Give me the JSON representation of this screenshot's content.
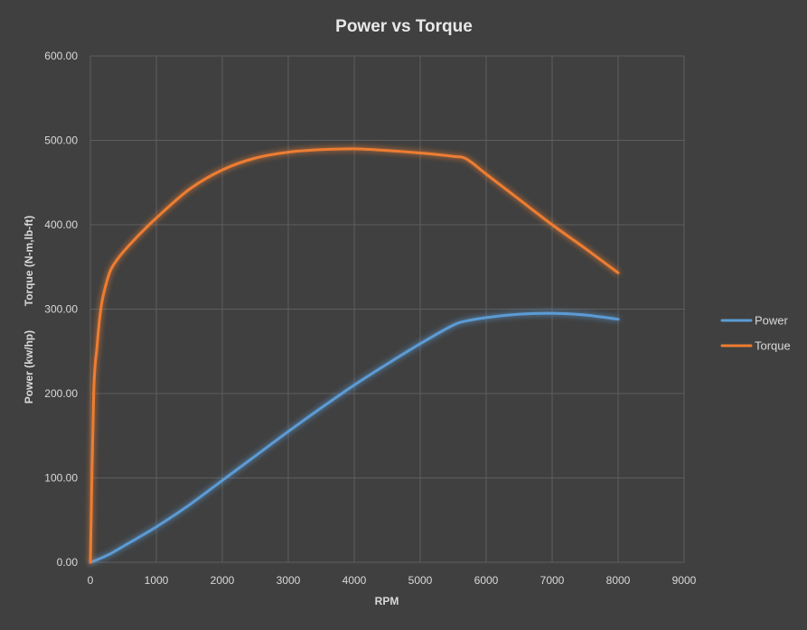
{
  "chart_data": {
    "type": "line",
    "title": "Power vs Torque",
    "xlabel": "RPM",
    "ylabel": "Power (kw/hp)        Torque (N-m,lb-ft)",
    "xlim": [
      0,
      9000
    ],
    "ylim": [
      0,
      600
    ],
    "x_ticks": [
      "0",
      "1000",
      "2000",
      "3000",
      "4000",
      "5000",
      "6000",
      "7000",
      "8000",
      "9000"
    ],
    "y_ticks": [
      "0.00",
      "100.00",
      "200.00",
      "300.00",
      "400.00",
      "500.00",
      "600.00"
    ],
    "grid": true,
    "legend_position": "right",
    "series": [
      {
        "name": "Power",
        "color": "#5b9bd5",
        "x": [
          0,
          100,
          300,
          500,
          1000,
          1500,
          2000,
          2500,
          3000,
          3500,
          4000,
          4500,
          5000,
          5500,
          5700,
          6000,
          6500,
          7000,
          7500,
          8000
        ],
        "y": [
          0,
          3,
          10,
          19,
          42,
          68,
          97,
          126,
          155,
          183,
          210,
          235,
          259,
          281,
          286,
          290,
          294,
          295,
          293,
          288
        ]
      },
      {
        "name": "Torque",
        "color": "#ed7d31",
        "x": [
          0,
          50,
          100,
          150,
          200,
          300,
          400,
          500,
          700,
          1000,
          1500,
          2000,
          2500,
          3000,
          3500,
          4000,
          4500,
          5000,
          5500,
          5700,
          6000,
          6500,
          7000,
          7500,
          8000
        ],
        "y": [
          0,
          200,
          255,
          295,
          318,
          345,
          358,
          368,
          385,
          408,
          442,
          465,
          479,
          486,
          489,
          490,
          488,
          485,
          481,
          478,
          460,
          430,
          400,
          372,
          343
        ]
      }
    ]
  }
}
